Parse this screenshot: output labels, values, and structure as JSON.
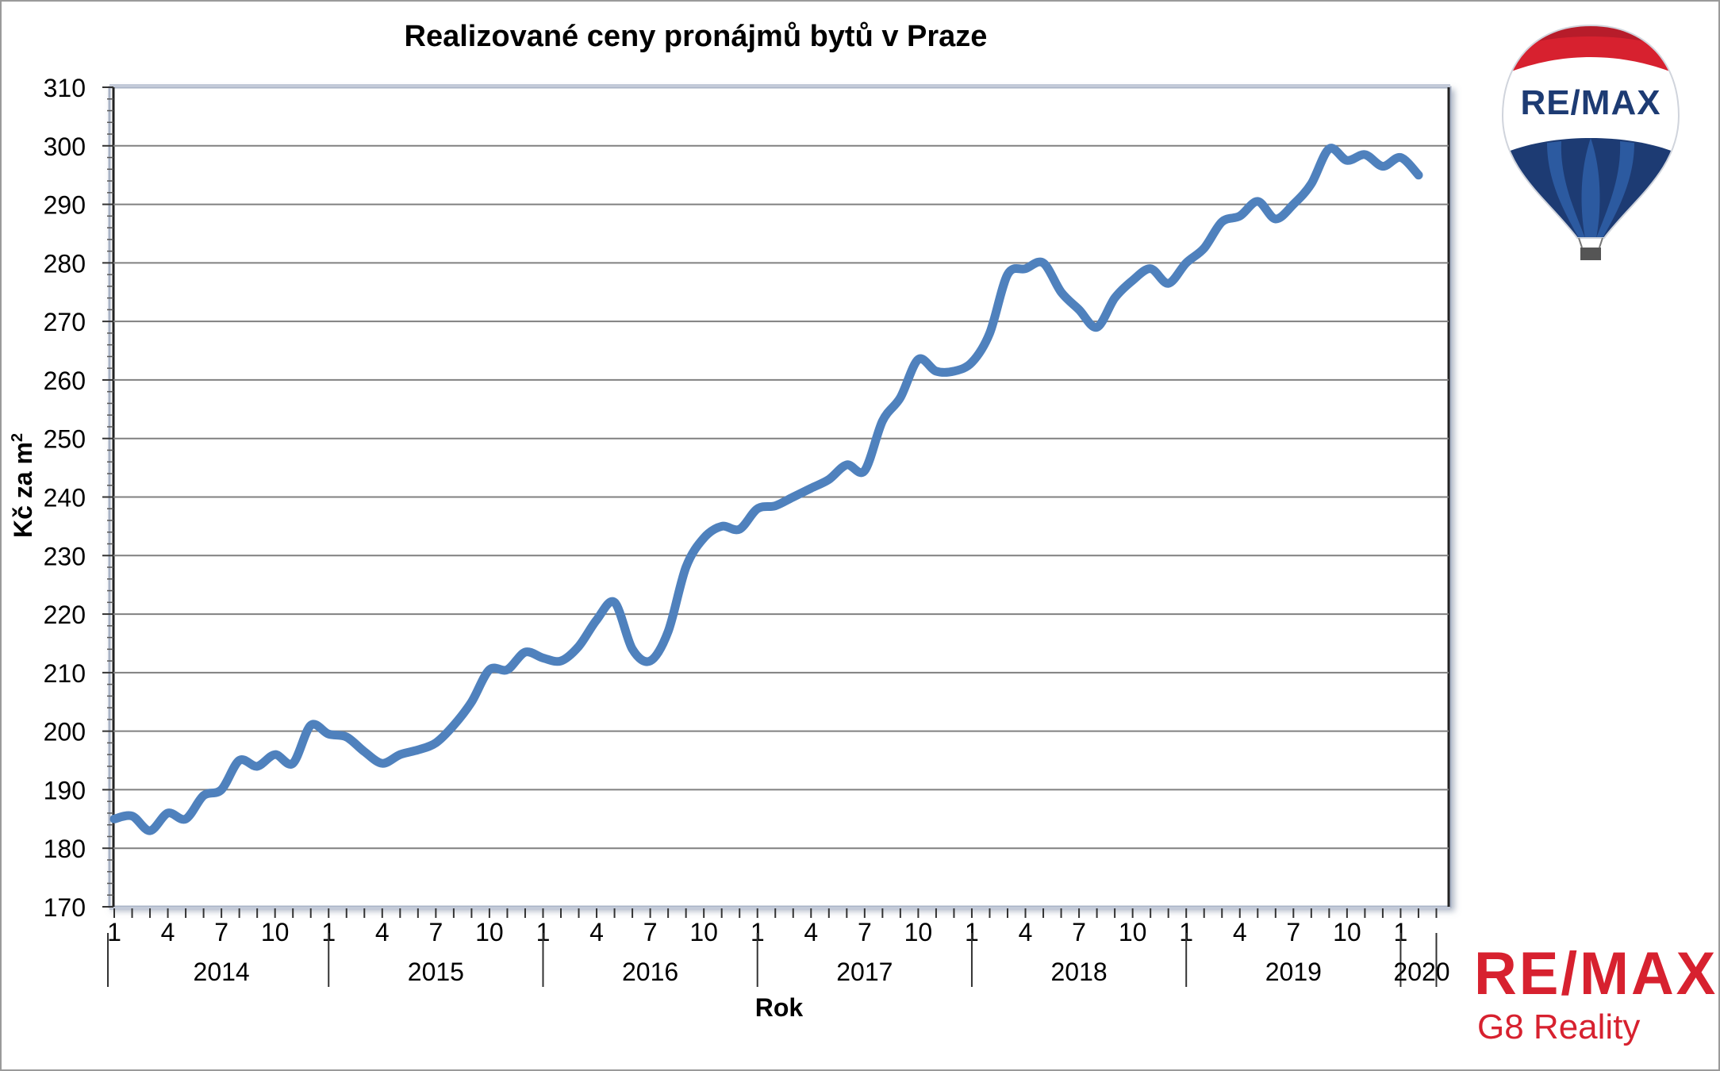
{
  "logo": {
    "balloon_text": "RE/MAX",
    "brand_name": "RE/MAX",
    "brand_subtitle": "G8 Reality"
  },
  "colors": {
    "line": "#4f81bd",
    "grid": "#808080",
    "brand_red": "#d7212f",
    "brand_blue": "#1d3b73"
  },
  "chart_data": {
    "type": "line",
    "title": "Realizované ceny pronájmů bytů v Praze",
    "xlabel": "Rok",
    "ylabel": "Kč za m",
    "ylabel_superscript": "2",
    "ylim": [
      170,
      310
    ],
    "ytick_step": 10,
    "grid": true,
    "years": [
      "2014",
      "2015",
      "2016",
      "2017",
      "2018",
      "2019",
      "2020"
    ],
    "month_tick_labels": [
      "1",
      "4",
      "7",
      "10"
    ],
    "series": [
      {
        "values": [
          185,
          185.5,
          183,
          186,
          185,
          189,
          190,
          195,
          194,
          196,
          194.5,
          201,
          199.5,
          199,
          196.5,
          194.5,
          196,
          196.8,
          198,
          201,
          205,
          210.5,
          210.5,
          213.5,
          212.5,
          212,
          214.5,
          219,
          222,
          214,
          212,
          217,
          228,
          233,
          235,
          234.5,
          238,
          238.5,
          240,
          241.5,
          243,
          245.5,
          244.5,
          253,
          257,
          263.5,
          261.5,
          261.5,
          263,
          268,
          278,
          279,
          280,
          275,
          272,
          269,
          274,
          277,
          279,
          276.5,
          280,
          282.5,
          287,
          288,
          290.5,
          287.5,
          290,
          293.5,
          299.5,
          297.5,
          298.5,
          296.5,
          298,
          295
        ]
      }
    ]
  }
}
